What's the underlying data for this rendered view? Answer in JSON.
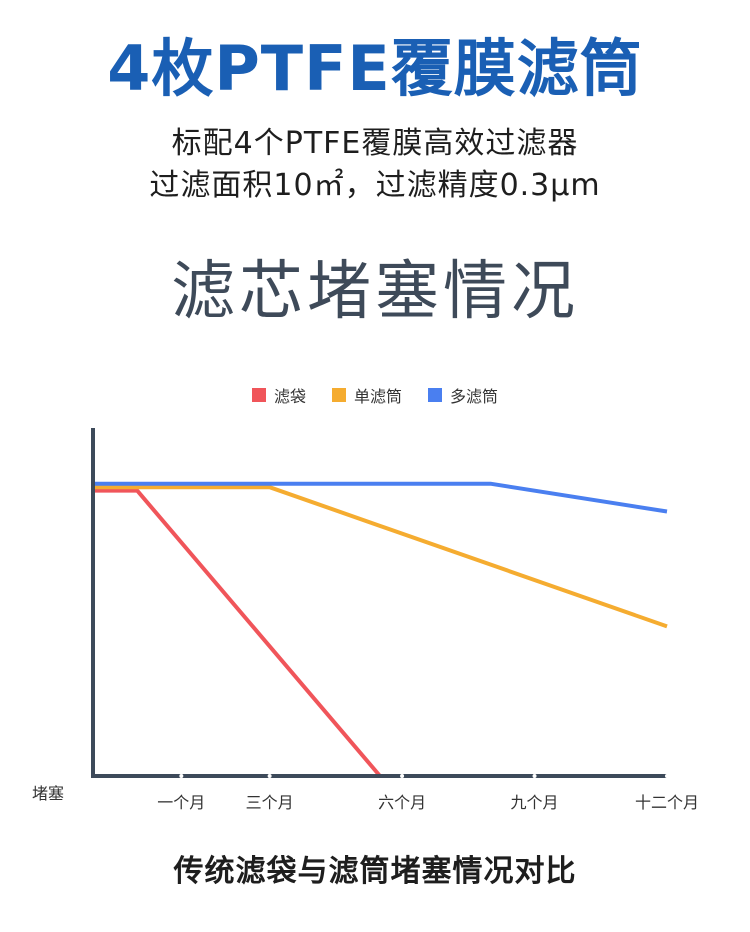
{
  "header": {
    "title": "4枚PTFE覆膜滤筒",
    "line1": "标配4个PTFE覆膜高效过滤器",
    "line2": "过滤面积10㎡，过滤精度0.3μm"
  },
  "section_title": "滤芯堵塞情况",
  "caption": "传统滤袋与滤筒堵塞情况对比",
  "chart_data": {
    "type": "line",
    "title": "",
    "xlabel": "",
    "ylabel": "堵塞",
    "x_ticks": [
      "一个月",
      "三个月",
      "六个月",
      "九个月",
      "十二个月"
    ],
    "x_tick_positions": [
      1,
      3,
      6,
      9,
      12
    ],
    "xlim": [
      -1,
      12
    ],
    "ylim": [
      0,
      100
    ],
    "legend_position": "top-center",
    "grid": false,
    "series": [
      {
        "name": "滤袋",
        "color": "#f0555a",
        "points": [
          [
            -1,
            82
          ],
          [
            0,
            82
          ],
          [
            5.5,
            0
          ]
        ]
      },
      {
        "name": "单滤筒",
        "color": "#f5ac30",
        "points": [
          [
            -1,
            83
          ],
          [
            3,
            83
          ],
          [
            12,
            43
          ]
        ]
      },
      {
        "name": "多滤筒",
        "color": "#4a7ff0",
        "points": [
          [
            -1,
            84
          ],
          [
            8,
            84
          ],
          [
            12,
            76
          ]
        ]
      }
    ]
  }
}
